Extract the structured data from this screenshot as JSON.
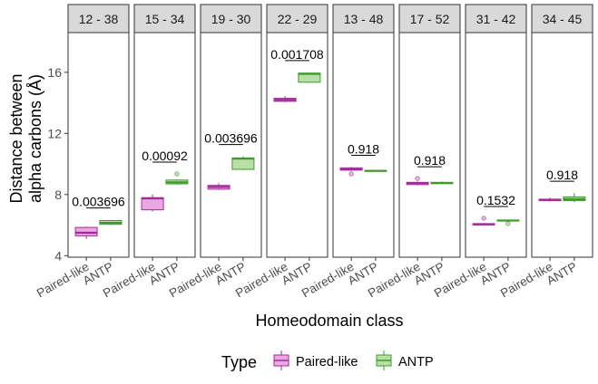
{
  "chart_data": {
    "type": "box",
    "ylabel_lines": [
      "Distance between",
      "alpha carbons (Å)"
    ],
    "xlabel": "Homeodomain class",
    "ylim": [
      3.9,
      18.6
    ],
    "yticks": [
      4,
      8,
      12,
      16
    ],
    "categories": [
      "Paired-like",
      "ANTP"
    ],
    "legend": {
      "title": "Type",
      "position": "bottom",
      "entries": [
        "Paired-like",
        "ANTP"
      ]
    },
    "colors": {
      "Paired-like": {
        "fill": "#e9a9e0",
        "stroke": "#a32a9a"
      },
      "ANTP": {
        "fill": "#b9dfa9",
        "stroke": "#3f9a2c"
      }
    },
    "facets": [
      {
        "label": "12 - 38",
        "pvalue": "0.003696",
        "boxes": [
          {
            "group": "Paired-like",
            "whisker_low": 5.1,
            "q1": 5.3,
            "median": 5.5,
            "q3": 5.85,
            "whisker_high": 5.9,
            "outliers": []
          },
          {
            "group": "ANTP",
            "whisker_low": 6.0,
            "q1": 6.05,
            "median": 6.15,
            "q3": 6.3,
            "whisker_high": 6.35,
            "outliers": []
          }
        ]
      },
      {
        "label": "15 - 34",
        "pvalue": "0.00092",
        "boxes": [
          {
            "group": "Paired-like",
            "whisker_low": 6.9,
            "q1": 7.0,
            "median": 7.75,
            "q3": 7.8,
            "whisker_high": 8.0,
            "outliers": []
          },
          {
            "group": "ANTP",
            "whisker_low": 8.65,
            "q1": 8.7,
            "median": 8.8,
            "q3": 8.95,
            "whisker_high": 9.0,
            "outliers": [
              9.35
            ]
          }
        ]
      },
      {
        "label": "19 - 30",
        "pvalue": "0.003696",
        "boxes": [
          {
            "group": "Paired-like",
            "whisker_low": 8.3,
            "q1": 8.35,
            "median": 8.5,
            "q3": 8.6,
            "whisker_high": 8.75,
            "outliers": []
          },
          {
            "group": "ANTP",
            "whisker_low": 9.6,
            "q1": 9.65,
            "median": 10.35,
            "q3": 10.4,
            "whisker_high": 10.5,
            "outliers": []
          }
        ]
      },
      {
        "label": "22 - 29",
        "pvalue": "0.001708",
        "boxes": [
          {
            "group": "Paired-like",
            "whisker_low": 14.05,
            "q1": 14.1,
            "median": 14.2,
            "q3": 14.3,
            "whisker_high": 14.45,
            "outliers": []
          },
          {
            "group": "ANTP",
            "whisker_low": 15.3,
            "q1": 15.35,
            "median": 15.9,
            "q3": 15.95,
            "whisker_high": 16.0,
            "outliers": []
          }
        ]
      },
      {
        "label": "13 - 48",
        "pvalue": "0.918",
        "boxes": [
          {
            "group": "Paired-like",
            "whisker_low": 9.55,
            "q1": 9.6,
            "median": 9.65,
            "q3": 9.75,
            "whisker_high": 9.8,
            "outliers": [
              9.35
            ]
          },
          {
            "group": "ANTP",
            "whisker_low": 9.5,
            "q1": 9.52,
            "median": 9.55,
            "q3": 9.58,
            "whisker_high": 9.6,
            "outliers": []
          }
        ]
      },
      {
        "label": "17 - 52",
        "pvalue": "0.918",
        "boxes": [
          {
            "group": "Paired-like",
            "whisker_low": 8.6,
            "q1": 8.65,
            "median": 8.75,
            "q3": 8.8,
            "whisker_high": 8.85,
            "outliers": [
              9.05
            ]
          },
          {
            "group": "ANTP",
            "whisker_low": 8.7,
            "q1": 8.72,
            "median": 8.75,
            "q3": 8.8,
            "whisker_high": 8.85,
            "outliers": []
          }
        ]
      },
      {
        "label": "31 - 42",
        "pvalue": "0.1532",
        "boxes": [
          {
            "group": "Paired-like",
            "whisker_low": 6.0,
            "q1": 6.02,
            "median": 6.05,
            "q3": 6.1,
            "whisker_high": 6.1,
            "outliers": [
              6.45
            ]
          },
          {
            "group": "ANTP",
            "whisker_low": 6.25,
            "q1": 6.27,
            "median": 6.3,
            "q3": 6.33,
            "whisker_high": 6.35,
            "outliers": [
              6.1
            ]
          }
        ]
      },
      {
        "label": "34 - 45",
        "pvalue": "0.918",
        "boxes": [
          {
            "group": "Paired-like",
            "whisker_low": 7.55,
            "q1": 7.6,
            "median": 7.65,
            "q3": 7.7,
            "whisker_high": 7.8,
            "outliers": []
          },
          {
            "group": "ANTP",
            "whisker_low": 7.5,
            "q1": 7.6,
            "median": 7.7,
            "q3": 7.85,
            "whisker_high": 8.1,
            "outliers": []
          }
        ]
      }
    ]
  }
}
